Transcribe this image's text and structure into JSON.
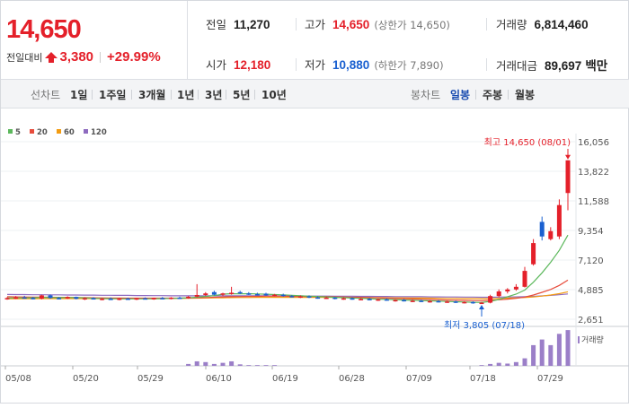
{
  "summary": {
    "price": "14,650",
    "change_label": "전일대비",
    "change_value": "3,380",
    "change_percent": "+29.99%",
    "prev_close": {
      "label": "전일",
      "value": "11,270"
    },
    "open": {
      "label": "시가",
      "value": "12,180"
    },
    "high": {
      "label": "고가",
      "value": "14,650",
      "sub": "(상한가 14,650)"
    },
    "low": {
      "label": "저가",
      "value": "10,880",
      "sub": "(하한가 7,890)"
    },
    "volume": {
      "label": "거래량",
      "value": "6,814,460"
    },
    "amount": {
      "label": "거래대금",
      "value": "89,697",
      "unit": "백만"
    }
  },
  "toolbar": {
    "line_chart_label": "선차트",
    "periods": [
      "1일",
      "1주일",
      "3개월",
      "1년",
      "3년",
      "5년",
      "10년"
    ],
    "candle_chart_label": "봉차트",
    "candle_periods": [
      "일봉",
      "주봉",
      "월봉"
    ],
    "candle_selected": "일봉"
  },
  "colors": {
    "up": "#e4202a",
    "down": "#1a60d0",
    "ma5": "#5cb85c",
    "ma20": "#e74c3c",
    "ma60": "#f39c12",
    "ma120": "#8e6bbf",
    "volume": "#9b7fc8"
  },
  "chart_data": {
    "type": "candlestick",
    "legend": [
      {
        "name": "5",
        "color": "#5cb85c"
      },
      {
        "name": "20",
        "color": "#e74c3c"
      },
      {
        "name": "60",
        "color": "#f39c12"
      },
      {
        "name": "120",
        "color": "#8e6bbf"
      }
    ],
    "y_ticks": [
      "16,056",
      "13,822",
      "11,588",
      "9,354",
      "7,120",
      "4,885",
      "2,651"
    ],
    "ylim": [
      2651,
      16056
    ],
    "x_ticks": [
      "05/08",
      "05/20",
      "05/29",
      "06/10",
      "06/19",
      "06/28",
      "07/09",
      "07/18",
      "07/29"
    ],
    "high_annotation": "최고 14,650 (08/01)",
    "low_annotation": "최저 3,805 (07/18)",
    "volume_label": "거래량",
    "candles": [
      {
        "o": 4210,
        "h": 4320,
        "l": 4120,
        "c": 4250
      },
      {
        "o": 4250,
        "h": 4400,
        "l": 4180,
        "c": 4300
      },
      {
        "o": 4300,
        "h": 4420,
        "l": 4200,
        "c": 4260
      },
      {
        "o": 4260,
        "h": 4340,
        "l": 4150,
        "c": 4200
      },
      {
        "o": 4200,
        "h": 4500,
        "l": 4150,
        "c": 4450
      },
      {
        "o": 4450,
        "h": 4520,
        "l": 4200,
        "c": 4250
      },
      {
        "o": 4250,
        "h": 4320,
        "l": 4150,
        "c": 4220
      },
      {
        "o": 4220,
        "h": 4380,
        "l": 4180,
        "c": 4330
      },
      {
        "o": 4330,
        "h": 4360,
        "l": 4150,
        "c": 4190
      },
      {
        "o": 4190,
        "h": 4300,
        "l": 4100,
        "c": 4240
      },
      {
        "o": 4240,
        "h": 4320,
        "l": 4150,
        "c": 4180
      },
      {
        "o": 4180,
        "h": 4260,
        "l": 4080,
        "c": 4200
      },
      {
        "o": 4200,
        "h": 4300,
        "l": 4120,
        "c": 4150
      },
      {
        "o": 4150,
        "h": 4260,
        "l": 4080,
        "c": 4210
      },
      {
        "o": 4210,
        "h": 4280,
        "l": 4120,
        "c": 4170
      },
      {
        "o": 4170,
        "h": 4260,
        "l": 4100,
        "c": 4230
      },
      {
        "o": 4230,
        "h": 4300,
        "l": 4150,
        "c": 4190
      },
      {
        "o": 4190,
        "h": 4280,
        "l": 4120,
        "c": 4250
      },
      {
        "o": 4250,
        "h": 4330,
        "l": 4170,
        "c": 4220
      },
      {
        "o": 4220,
        "h": 4320,
        "l": 4150,
        "c": 4280
      },
      {
        "o": 4280,
        "h": 4350,
        "l": 4200,
        "c": 4240
      },
      {
        "o": 4240,
        "h": 4400,
        "l": 4200,
        "c": 4350
      },
      {
        "o": 4350,
        "h": 5300,
        "l": 4300,
        "c": 4480
      },
      {
        "o": 4480,
        "h": 4700,
        "l": 4400,
        "c": 4600
      },
      {
        "o": 4700,
        "h": 4800,
        "l": 4450,
        "c": 4500
      },
      {
        "o": 4500,
        "h": 4650,
        "l": 4400,
        "c": 4600
      },
      {
        "o": 4600,
        "h": 5100,
        "l": 4500,
        "c": 4650
      },
      {
        "o": 4700,
        "h": 4800,
        "l": 4550,
        "c": 4600
      },
      {
        "o": 4600,
        "h": 4700,
        "l": 4480,
        "c": 4550
      },
      {
        "o": 4550,
        "h": 4650,
        "l": 4450,
        "c": 4520
      },
      {
        "o": 4580,
        "h": 4650,
        "l": 4420,
        "c": 4450
      },
      {
        "o": 4450,
        "h": 4560,
        "l": 4380,
        "c": 4500
      },
      {
        "o": 4500,
        "h": 4580,
        "l": 4350,
        "c": 4400
      },
      {
        "o": 4400,
        "h": 4480,
        "l": 4300,
        "c": 4350
      },
      {
        "o": 4350,
        "h": 4450,
        "l": 4250,
        "c": 4380
      },
      {
        "o": 4380,
        "h": 4450,
        "l": 4250,
        "c": 4300
      },
      {
        "o": 4300,
        "h": 4380,
        "l": 4200,
        "c": 4250
      },
      {
        "o": 4250,
        "h": 4350,
        "l": 4180,
        "c": 4280
      },
      {
        "o": 4280,
        "h": 4330,
        "l": 4150,
        "c": 4200
      },
      {
        "o": 4200,
        "h": 4300,
        "l": 4120,
        "c": 4230
      },
      {
        "o": 4230,
        "h": 4300,
        "l": 4120,
        "c": 4150
      },
      {
        "o": 4150,
        "h": 4250,
        "l": 4080,
        "c": 4180
      },
      {
        "o": 4180,
        "h": 4250,
        "l": 4080,
        "c": 4120
      },
      {
        "o": 4120,
        "h": 4200,
        "l": 4030,
        "c": 4150
      },
      {
        "o": 4150,
        "h": 4220,
        "l": 4050,
        "c": 4080
      },
      {
        "o": 4080,
        "h": 4150,
        "l": 3980,
        "c": 4100
      },
      {
        "o": 4100,
        "h": 4180,
        "l": 3990,
        "c": 4030
      },
      {
        "o": 4030,
        "h": 4120,
        "l": 3950,
        "c": 4050
      },
      {
        "o": 4050,
        "h": 4120,
        "l": 3940,
        "c": 3990
      },
      {
        "o": 3990,
        "h": 4080,
        "l": 3900,
        "c": 4020
      },
      {
        "o": 4020,
        "h": 4100,
        "l": 3920,
        "c": 3960
      },
      {
        "o": 3960,
        "h": 4040,
        "l": 3880,
        "c": 3990
      },
      {
        "o": 3990,
        "h": 4050,
        "l": 3870,
        "c": 3920
      },
      {
        "o": 3920,
        "h": 4000,
        "l": 3840,
        "c": 3950
      },
      {
        "o": 3950,
        "h": 4000,
        "l": 3820,
        "c": 3880
      },
      {
        "o": 3880,
        "h": 3960,
        "l": 3805,
        "c": 3900
      },
      {
        "o": 3900,
        "h": 4500,
        "l": 3850,
        "c": 4400
      },
      {
        "o": 4400,
        "h": 4900,
        "l": 4300,
        "c": 4750
      },
      {
        "o": 4750,
        "h": 5000,
        "l": 4600,
        "c": 4900
      },
      {
        "o": 4900,
        "h": 5300,
        "l": 4800,
        "c": 5100
      },
      {
        "o": 5100,
        "h": 6600,
        "l": 5050,
        "c": 6300
      },
      {
        "o": 6800,
        "h": 8700,
        "l": 6700,
        "c": 8400
      },
      {
        "o": 10000,
        "h": 10400,
        "l": 8600,
        "c": 8900
      },
      {
        "o": 8700,
        "h": 9600,
        "l": 8600,
        "c": 9300
      },
      {
        "o": 8900,
        "h": 11700,
        "l": 8700,
        "c": 11270
      },
      {
        "o": 12180,
        "h": 14650,
        "l": 10880,
        "c": 14650
      }
    ],
    "ma5": [
      4250,
      4260,
      4270,
      4270,
      4300,
      4290,
      4280,
      4290,
      4280,
      4260,
      4230,
      4210,
      4200,
      4190,
      4190,
      4190,
      4190,
      4200,
      4210,
      4220,
      4240,
      4270,
      4310,
      4370,
      4430,
      4540,
      4580,
      4570,
      4580,
      4560,
      4540,
      4510,
      4490,
      4460,
      4420,
      4390,
      4370,
      4330,
      4300,
      4280,
      4250,
      4230,
      4200,
      4170,
      4150,
      4130,
      4100,
      4080,
      4060,
      4040,
      4020,
      3990,
      3970,
      3950,
      3930,
      3920,
      4000,
      4150,
      4350,
      4550,
      4850,
      5450,
      6150,
      6950,
      7850,
      9000
    ],
    "ma20": [
      4350,
      4340,
      4330,
      4320,
      4320,
      4310,
      4300,
      4300,
      4290,
      4280,
      4270,
      4260,
      4250,
      4250,
      4240,
      4240,
      4240,
      4240,
      4240,
      4240,
      4240,
      4250,
      4270,
      4290,
      4310,
      4330,
      4350,
      4360,
      4370,
      4380,
      4390,
      4390,
      4390,
      4380,
      4380,
      4370,
      4360,
      4350,
      4340,
      4330,
      4310,
      4300,
      4280,
      4260,
      4240,
      4220,
      4200,
      4180,
      4160,
      4140,
      4120,
      4100,
      4090,
      4070,
      4060,
      4050,
      4080,
      4120,
      4170,
      4230,
      4320,
      4480,
      4680,
      4900,
      5200,
      5600
    ],
    "ma60": [
      4200,
      4200,
      4200,
      4200,
      4210,
      4210,
      4210,
      4210,
      4210,
      4210,
      4210,
      4210,
      4210,
      4210,
      4210,
      4210,
      4210,
      4210,
      4210,
      4220,
      4220,
      4230,
      4240,
      4250,
      4260,
      4270,
      4280,
      4290,
      4290,
      4300,
      4300,
      4300,
      4300,
      4300,
      4300,
      4300,
      4300,
      4300,
      4300,
      4290,
      4290,
      4290,
      4280,
      4280,
      4270,
      4260,
      4260,
      4250,
      4250,
      4240,
      4230,
      4220,
      4220,
      4210,
      4210,
      4200,
      4210,
      4220,
      4240,
      4260,
      4290,
      4340,
      4400,
      4480,
      4580,
      4720
    ],
    "ma120": [
      4520,
      4510,
      4510,
      4500,
      4500,
      4490,
      4490,
      4480,
      4480,
      4470,
      4470,
      4460,
      4460,
      4450,
      4450,
      4440,
      4440,
      4430,
      4430,
      4420,
      4420,
      4420,
      4420,
      4420,
      4420,
      4420,
      4420,
      4420,
      4420,
      4420,
      4420,
      4410,
      4410,
      4410,
      4410,
      4400,
      4400,
      4400,
      4390,
      4390,
      4390,
      4380,
      4380,
      4370,
      4370,
      4360,
      4360,
      4350,
      4350,
      4340,
      4340,
      4330,
      4330,
      4320,
      4320,
      4310,
      4310,
      4320,
      4330,
      4340,
      4350,
      4380,
      4410,
      4450,
      4500,
      4560
    ],
    "volume": [
      0.01,
      0.01,
      0.01,
      0.01,
      0.01,
      0.01,
      0.01,
      0.01,
      0.01,
      0.01,
      0.01,
      0.01,
      0.01,
      0.01,
      0.01,
      0.01,
      0.01,
      0.01,
      0.01,
      0.01,
      0.01,
      0.05,
      0.12,
      0.1,
      0.05,
      0.08,
      0.12,
      0.04,
      0.02,
      0.02,
      0.02,
      0.02,
      0.01,
      0.01,
      0.01,
      0.01,
      0.01,
      0.01,
      0.01,
      0.01,
      0.01,
      0.01,
      0.01,
      0.01,
      0.01,
      0.01,
      0.01,
      0.01,
      0.01,
      0.01,
      0.01,
      0.01,
      0.01,
      0.01,
      0.01,
      0.02,
      0.05,
      0.08,
      0.06,
      0.1,
      0.2,
      0.55,
      0.7,
      0.55,
      0.85,
      0.95
    ]
  }
}
